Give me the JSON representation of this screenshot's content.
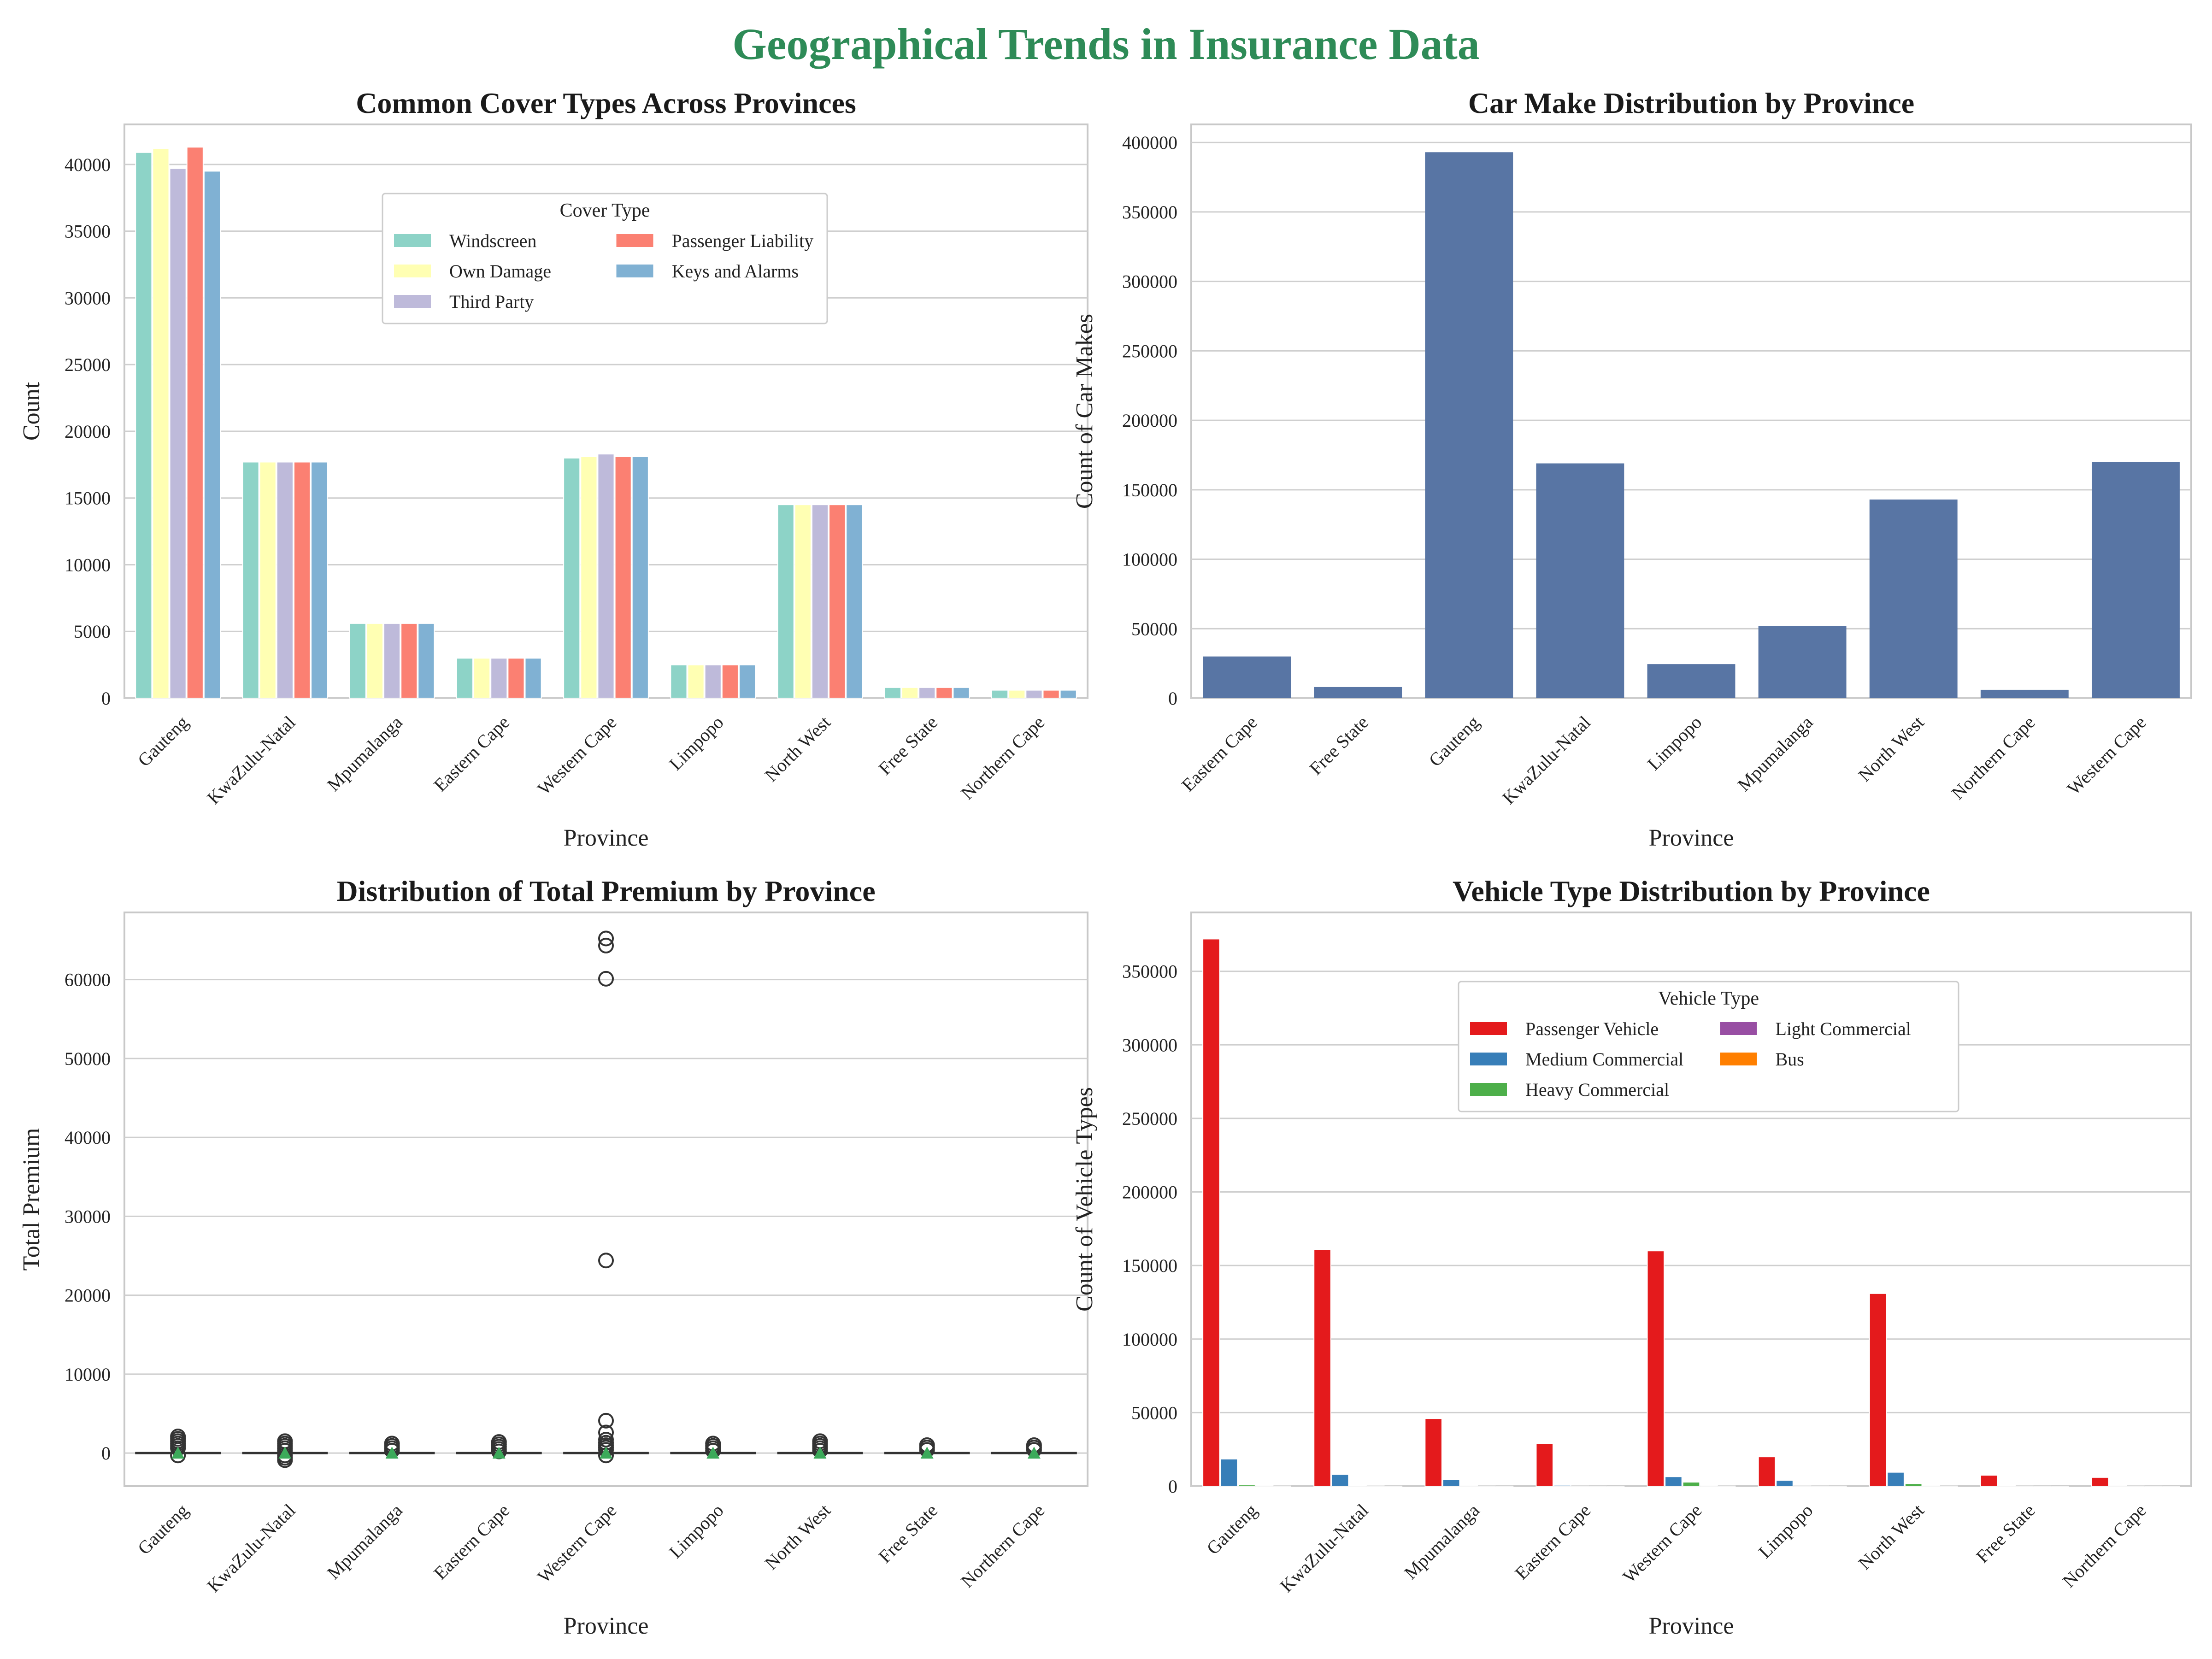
{
  "figure": {
    "suptitle": "Geographical Trends in Insurance Data",
    "suptitle_color": "#2e8b57"
  },
  "chart_data": [
    {
      "type": "bar",
      "title": "Common Cover Types Across Provinces",
      "xlabel": "Province",
      "ylabel": "Count",
      "ylim": [
        0,
        43000
      ],
      "yticks": [
        0,
        5000,
        10000,
        15000,
        20000,
        25000,
        30000,
        35000,
        40000
      ],
      "grid": true,
      "legend": {
        "title": "Cover Type",
        "placement": "top-center",
        "columns": 2
      },
      "categories": [
        "Gauteng",
        "KwaZulu-Natal",
        "Mpumalanga",
        "Eastern Cape",
        "Western Cape",
        "Limpopo",
        "North West",
        "Free State",
        "Northern Cape"
      ],
      "series": [
        {
          "name": "Windscreen",
          "color": "#8dd3c7",
          "values": [
            40900,
            17700,
            5600,
            3000,
            18000,
            2500,
            14500,
            800,
            600
          ]
        },
        {
          "name": "Own Damage",
          "color": "#ffffb3",
          "values": [
            41200,
            17700,
            5600,
            3000,
            18100,
            2500,
            14500,
            800,
            600
          ]
        },
        {
          "name": "Third Party",
          "color": "#bebada",
          "values": [
            39700,
            17700,
            5600,
            3000,
            18300,
            2500,
            14500,
            800,
            600
          ]
        },
        {
          "name": "Passenger Liability",
          "color": "#fb8072",
          "values": [
            41300,
            17700,
            5600,
            3000,
            18100,
            2500,
            14500,
            800,
            600
          ]
        },
        {
          "name": "Keys and Alarms",
          "color": "#80b1d3",
          "values": [
            39500,
            17700,
            5600,
            3000,
            18100,
            2500,
            14500,
            800,
            600
          ]
        }
      ]
    },
    {
      "type": "bar",
      "title": "Car Make Distribution by Province",
      "xlabel": "Province",
      "ylabel": "Count of Car Makes",
      "ylim": [
        0,
        413000
      ],
      "yticks": [
        0,
        50000,
        100000,
        150000,
        200000,
        250000,
        300000,
        350000,
        400000
      ],
      "grid": true,
      "categories": [
        "Eastern Cape",
        "Free State",
        "Gauteng",
        "KwaZulu-Natal",
        "Limpopo",
        "Mpumalanga",
        "North West",
        "Northern Cape",
        "Western Cape"
      ],
      "series": [
        {
          "color": "#5875a4",
          "values": [
            30000,
            8000,
            393000,
            169000,
            24500,
            52000,
            143000,
            6000,
            170000
          ]
        }
      ]
    },
    {
      "type": "box",
      "title": "Distribution of Total Premium by Province",
      "xlabel": "Province",
      "ylabel": "Total Premium",
      "ylim": [
        -4200,
        68500
      ],
      "yticks": [
        0,
        10000,
        20000,
        30000,
        40000,
        50000,
        60000
      ],
      "grid": true,
      "categories": [
        "Gauteng",
        "KwaZulu-Natal",
        "Mpumalanga",
        "Eastern Cape",
        "Western Cape",
        "Limpopo",
        "North West",
        "Free State",
        "Northern Cape"
      ],
      "mean_color": "#3caa5a",
      "boxes": [
        {
          "median": 0,
          "outliers": [
            2100,
            1800,
            1500,
            1200,
            900,
            600,
            -300
          ]
        },
        {
          "median": 0,
          "outliers": [
            1500,
            1200,
            900,
            600,
            300,
            -300,
            -600,
            -900
          ]
        },
        {
          "median": 0,
          "outliers": [
            1200,
            900,
            600,
            300
          ]
        },
        {
          "median": 0,
          "outliers": [
            1400,
            1100,
            800,
            500,
            200
          ]
        },
        {
          "median": 0,
          "outliers": [
            65200,
            64300,
            60100,
            24400,
            4100,
            2600,
            1700,
            1300,
            1000,
            700,
            400,
            -300
          ]
        },
        {
          "median": 0,
          "outliers": [
            1200,
            900,
            600,
            300
          ]
        },
        {
          "median": 0,
          "outliers": [
            1500,
            1200,
            900,
            600,
            300
          ]
        },
        {
          "median": 0,
          "outliers": [
            1000,
            700,
            400
          ]
        },
        {
          "median": 0,
          "outliers": [
            1000,
            700,
            400
          ]
        }
      ]
    },
    {
      "type": "bar",
      "title": "Vehicle Type Distribution by Province",
      "xlabel": "Province",
      "ylabel": "Count of Vehicle Types",
      "ylim": [
        0,
        390000
      ],
      "yticks": [
        0,
        50000,
        100000,
        150000,
        200000,
        250000,
        300000,
        350000
      ],
      "grid": true,
      "legend": {
        "title": "Vehicle Type",
        "placement": "top-center",
        "columns": 2
      },
      "categories": [
        "Gauteng",
        "KwaZulu-Natal",
        "Mpumalanga",
        "Eastern Cape",
        "Western Cape",
        "Limpopo",
        "North West",
        "Free State",
        "Northern Cape"
      ],
      "series": [
        {
          "name": "Passenger Vehicle",
          "color": "#e41a1c",
          "values": [
            372000,
            161000,
            46000,
            29000,
            160000,
            20000,
            131000,
            7500,
            6000
          ]
        },
        {
          "name": "Medium Commercial",
          "color": "#377eb8",
          "values": [
            18500,
            8000,
            4500,
            700,
            6500,
            4000,
            9500,
            400,
            300
          ]
        },
        {
          "name": "Heavy Commercial",
          "color": "#4daf4a",
          "values": [
            900,
            500,
            300,
            100,
            2800,
            200,
            1800,
            100,
            100
          ]
        },
        {
          "name": "Light Commercial",
          "color": "#984ea3",
          "values": [
            300,
            200,
            100,
            50,
            300,
            100,
            300,
            50,
            50
          ]
        },
        {
          "name": "Bus",
          "color": "#ff7f00",
          "values": [
            100,
            50,
            50,
            20,
            100,
            50,
            100,
            20,
            20
          ]
        }
      ]
    }
  ]
}
